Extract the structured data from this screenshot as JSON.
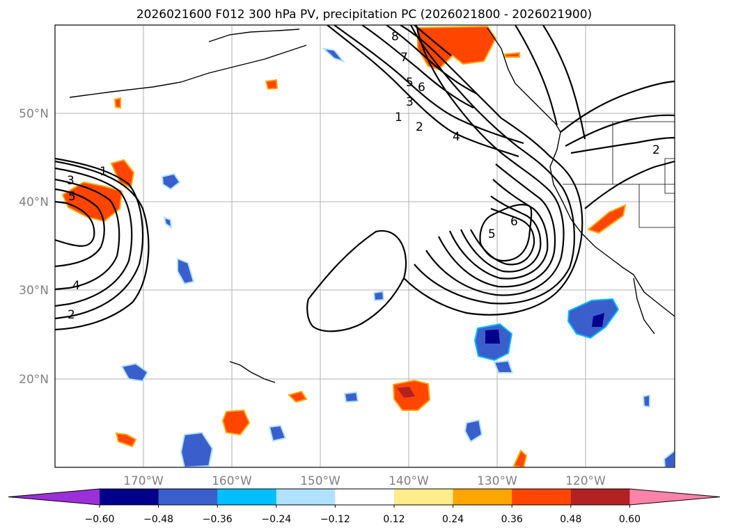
{
  "title": "2026021600 F012 300 hPa PV, precipitation PC (2026021800 - 2026021900)",
  "longitude_ticks": [
    "170°W",
    "160°W",
    "150°W",
    "140°W",
    "130°W",
    "120°W"
  ],
  "latitude_ticks": [
    "50°N",
    "40°N",
    "30°N",
    "20°N"
  ],
  "colorbar": {
    "ticks": [
      "−0.60",
      "−0.48",
      "−0.36",
      "−0.24",
      "−0.12",
      "0.12",
      "0.24",
      "0.36",
      "0.48",
      "0.60"
    ],
    "colors": [
      "#9b30d9",
      "#00008b",
      "#3a5fcd",
      "#00bfff",
      "#b0e2ff",
      "#ffffff",
      "#ffec8b",
      "#ffa500",
      "#ff4500",
      "#b22222",
      "#ff82ab"
    ]
  },
  "pv_contour_labels": {
    "west_low": [
      "1",
      "3",
      "5",
      "4",
      "2"
    ],
    "trough": [
      "8",
      "7",
      "5",
      "6",
      "3",
      "1",
      "2",
      "4",
      "5",
      "6"
    ],
    "east": [
      "2"
    ]
  },
  "gridlines": true
}
